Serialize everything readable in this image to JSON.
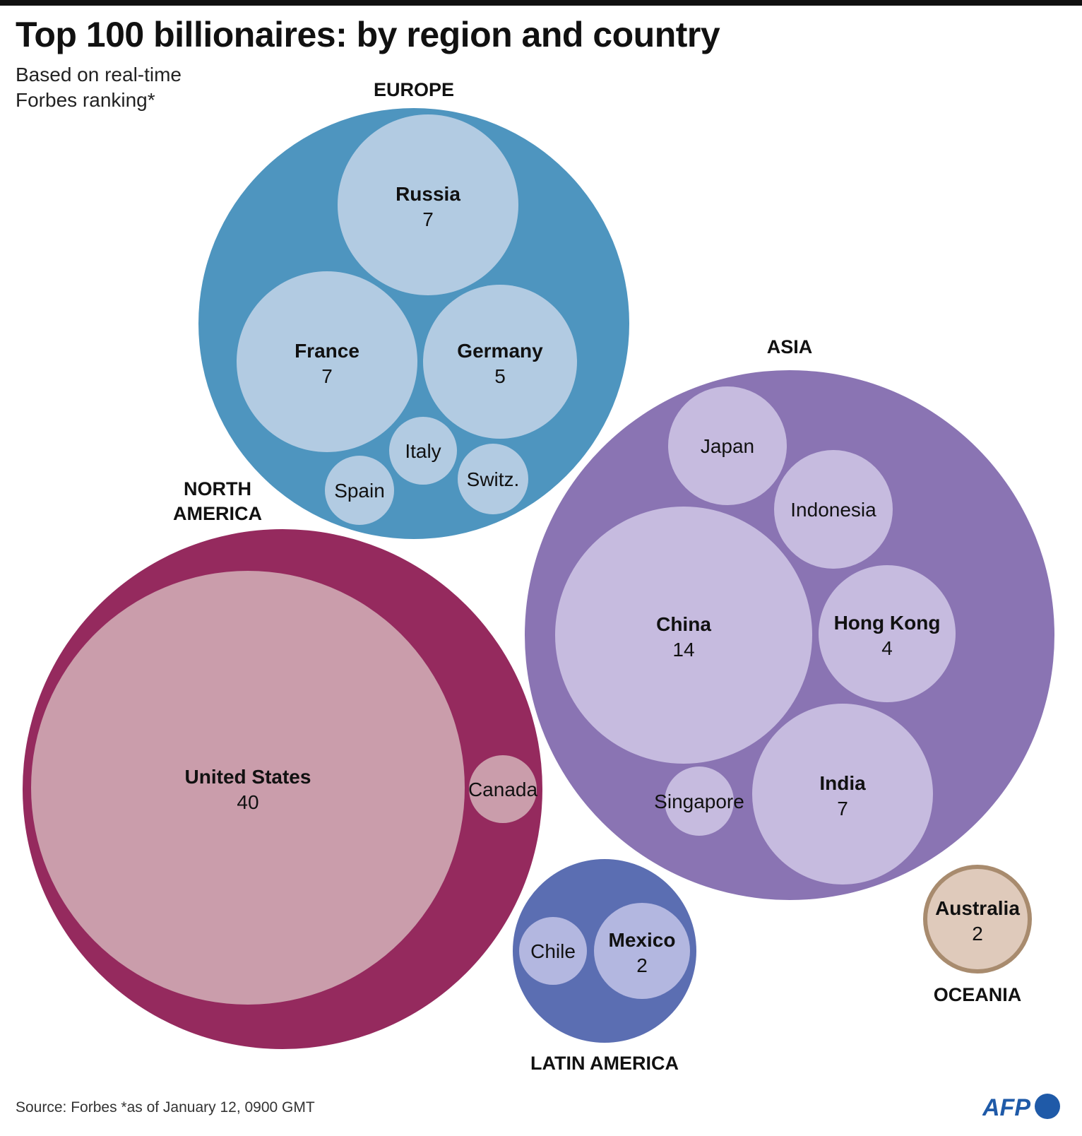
{
  "title": "Top 100 billionaires: by region and country",
  "subtitle_lines": [
    "Based on real-time",
    "Forbes ranking*"
  ],
  "source": "Source: Forbes *as of January 12, 0900 GMT",
  "logo_text": "AFP",
  "chart_data": {
    "type": "bubble",
    "title": "Top 100 billionaires: by region and country",
    "regions": [
      {
        "name": "EUROPE",
        "color": "#4e95bf",
        "child_color": "#b2cbe2",
        "countries": [
          {
            "name": "Russia",
            "value": 7,
            "show_value": true
          },
          {
            "name": "France",
            "value": 7,
            "show_value": true
          },
          {
            "name": "Germany",
            "value": 5,
            "show_value": true
          },
          {
            "name": "Italy",
            "value": 1,
            "show_value": false
          },
          {
            "name": "Switz.",
            "value": 1,
            "show_value": false
          },
          {
            "name": "Spain",
            "value": 1,
            "show_value": false
          }
        ]
      },
      {
        "name": "NORTH AMERICA",
        "color": "#952a5e",
        "child_color": "#ca9dab",
        "countries": [
          {
            "name": "United States",
            "value": 40,
            "show_value": true
          },
          {
            "name": "Canada",
            "value": 1,
            "show_value": false
          }
        ]
      },
      {
        "name": "ASIA",
        "color": "#8a74b3",
        "child_color": "#c6bbdf",
        "countries": [
          {
            "name": "Japan",
            "value": 3,
            "show_value": false
          },
          {
            "name": "Indonesia",
            "value": 3,
            "show_value": false
          },
          {
            "name": "China",
            "value": 14,
            "show_value": true
          },
          {
            "name": "Hong Kong",
            "value": 4,
            "show_value": true
          },
          {
            "name": "Singapore",
            "value": 1,
            "show_value": false
          },
          {
            "name": "India",
            "value": 7,
            "show_value": true
          }
        ]
      },
      {
        "name": "LATIN AMERICA",
        "color": "#5b6eb2",
        "child_color": "#b3b7e0",
        "countries": [
          {
            "name": "Chile",
            "value": 1,
            "show_value": false
          },
          {
            "name": "Mexico",
            "value": 2,
            "show_value": true
          }
        ]
      },
      {
        "name": "OCEANIA",
        "color": "#a88b6e",
        "child_color": "#dfcabb",
        "countries": [
          {
            "name": "Australia",
            "value": 2,
            "show_value": true
          }
        ]
      }
    ]
  }
}
